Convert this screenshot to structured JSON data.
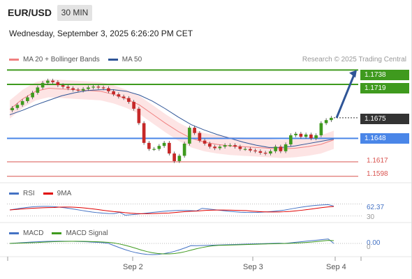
{
  "header": {
    "symbol": "EUR/USD",
    "timeframe": "30 MIN",
    "datetime": "Wednesday, September 3, 2025 6:26:20 PM CET"
  },
  "legend": {
    "items": [
      {
        "label": "MA 20 + Bollinger Bands",
        "color": "#f08080"
      },
      {
        "label": "MA 50",
        "color": "#2f5597"
      }
    ],
    "credit": "Research © 2025 Trading Central"
  },
  "levels": {
    "resistance2": "1.1738",
    "resistance1": "1.1719",
    "current": "1.1675",
    "pivot": "1.1648",
    "support1": "1.1617",
    "support2": "1.1598"
  },
  "rsi_panel": {
    "legend": [
      {
        "label": "RSI",
        "color": "#4472c4"
      },
      {
        "label": "9MA",
        "color": "#e00000"
      }
    ],
    "value": "62.37",
    "level": "30"
  },
  "macd_panel": {
    "legend": [
      {
        "label": "MACD",
        "color": "#4472c4"
      },
      {
        "label": "MACD Signal",
        "color": "#3f9a1e"
      }
    ],
    "value": "0.00",
    "level": "0"
  },
  "x_axis": {
    "ticks": [
      "Sep 2",
      "Sep 3",
      "Sep 4"
    ]
  },
  "colors": {
    "resistance": "#3f9a1e",
    "pivot": "#4a86e8",
    "support": "#d9534f",
    "current": "#333333",
    "arrow": "#2f5597",
    "bull": "#3f9a1e",
    "bear": "#c62828",
    "bollinger": "#fcd5d5"
  },
  "chart_data": {
    "type": "candlestick",
    "series": [
      {
        "name": "EUR/USD",
        "points": [
          1.1688,
          1.1692,
          1.1697,
          1.1702,
          1.1708,
          1.1715,
          1.1721,
          1.1724,
          1.1722,
          1.1718,
          1.1716,
          1.1714,
          1.1712,
          1.1711,
          1.1713,
          1.1715,
          1.1716,
          1.1715,
          1.1714,
          1.171,
          1.1706,
          1.1703,
          1.1701,
          1.1696,
          1.1687,
          1.1668,
          1.1642,
          1.1634,
          1.1634,
          1.1638,
          1.1642,
          1.1628,
          1.1618,
          1.1625,
          1.1641,
          1.1662,
          1.1655,
          1.1645,
          1.1641,
          1.1637,
          1.1635,
          1.1637,
          1.1639,
          1.1639,
          1.1637,
          1.1634,
          1.1634,
          1.1632,
          1.1631,
          1.1629,
          1.1628,
          1.1631,
          1.1637,
          1.1631,
          1.164,
          1.1652,
          1.1654,
          1.165,
          1.1653,
          1.1648,
          1.1652,
          1.1668,
          1.1672,
          1.1675
        ]
      },
      {
        "name": "MA 20",
        "points": [
          1.1686,
          1.17,
          1.171,
          1.1714,
          1.1713,
          1.1712,
          1.1711,
          1.171,
          1.1706,
          1.17,
          1.1692,
          1.168,
          1.1668,
          1.1657,
          1.1648,
          1.1643,
          1.164,
          1.1638,
          1.1637,
          1.1636,
          1.1635,
          1.1634,
          1.1635,
          1.1637,
          1.164,
          1.1646
        ]
      },
      {
        "name": "MA 50",
        "points": [
          1.1679,
          1.1685,
          1.1692,
          1.1698,
          1.1704,
          1.1708,
          1.1711,
          1.1712,
          1.1712,
          1.171,
          1.1705,
          1.1697,
          1.1687,
          1.1676,
          1.1666,
          1.1659,
          1.1653,
          1.1648,
          1.1643,
          1.1639,
          1.1636,
          1.1636,
          1.1638,
          1.1641,
          1.1644,
          1.1647
        ]
      }
    ],
    "ylim": [
      1.1595,
      1.1742
    ],
    "levels": [
      1.1738,
      1.1719,
      1.1675,
      1.1648,
      1.1617,
      1.1598
    ],
    "projection": {
      "from": 1.1675,
      "to": 1.1738
    },
    "x_ticks": [
      "Sep 2",
      "Sep 3",
      "Sep 4"
    ],
    "rsi": {
      "value": 62.37,
      "levels": [
        70,
        30
      ]
    },
    "macd": {
      "value": 0.0
    }
  }
}
